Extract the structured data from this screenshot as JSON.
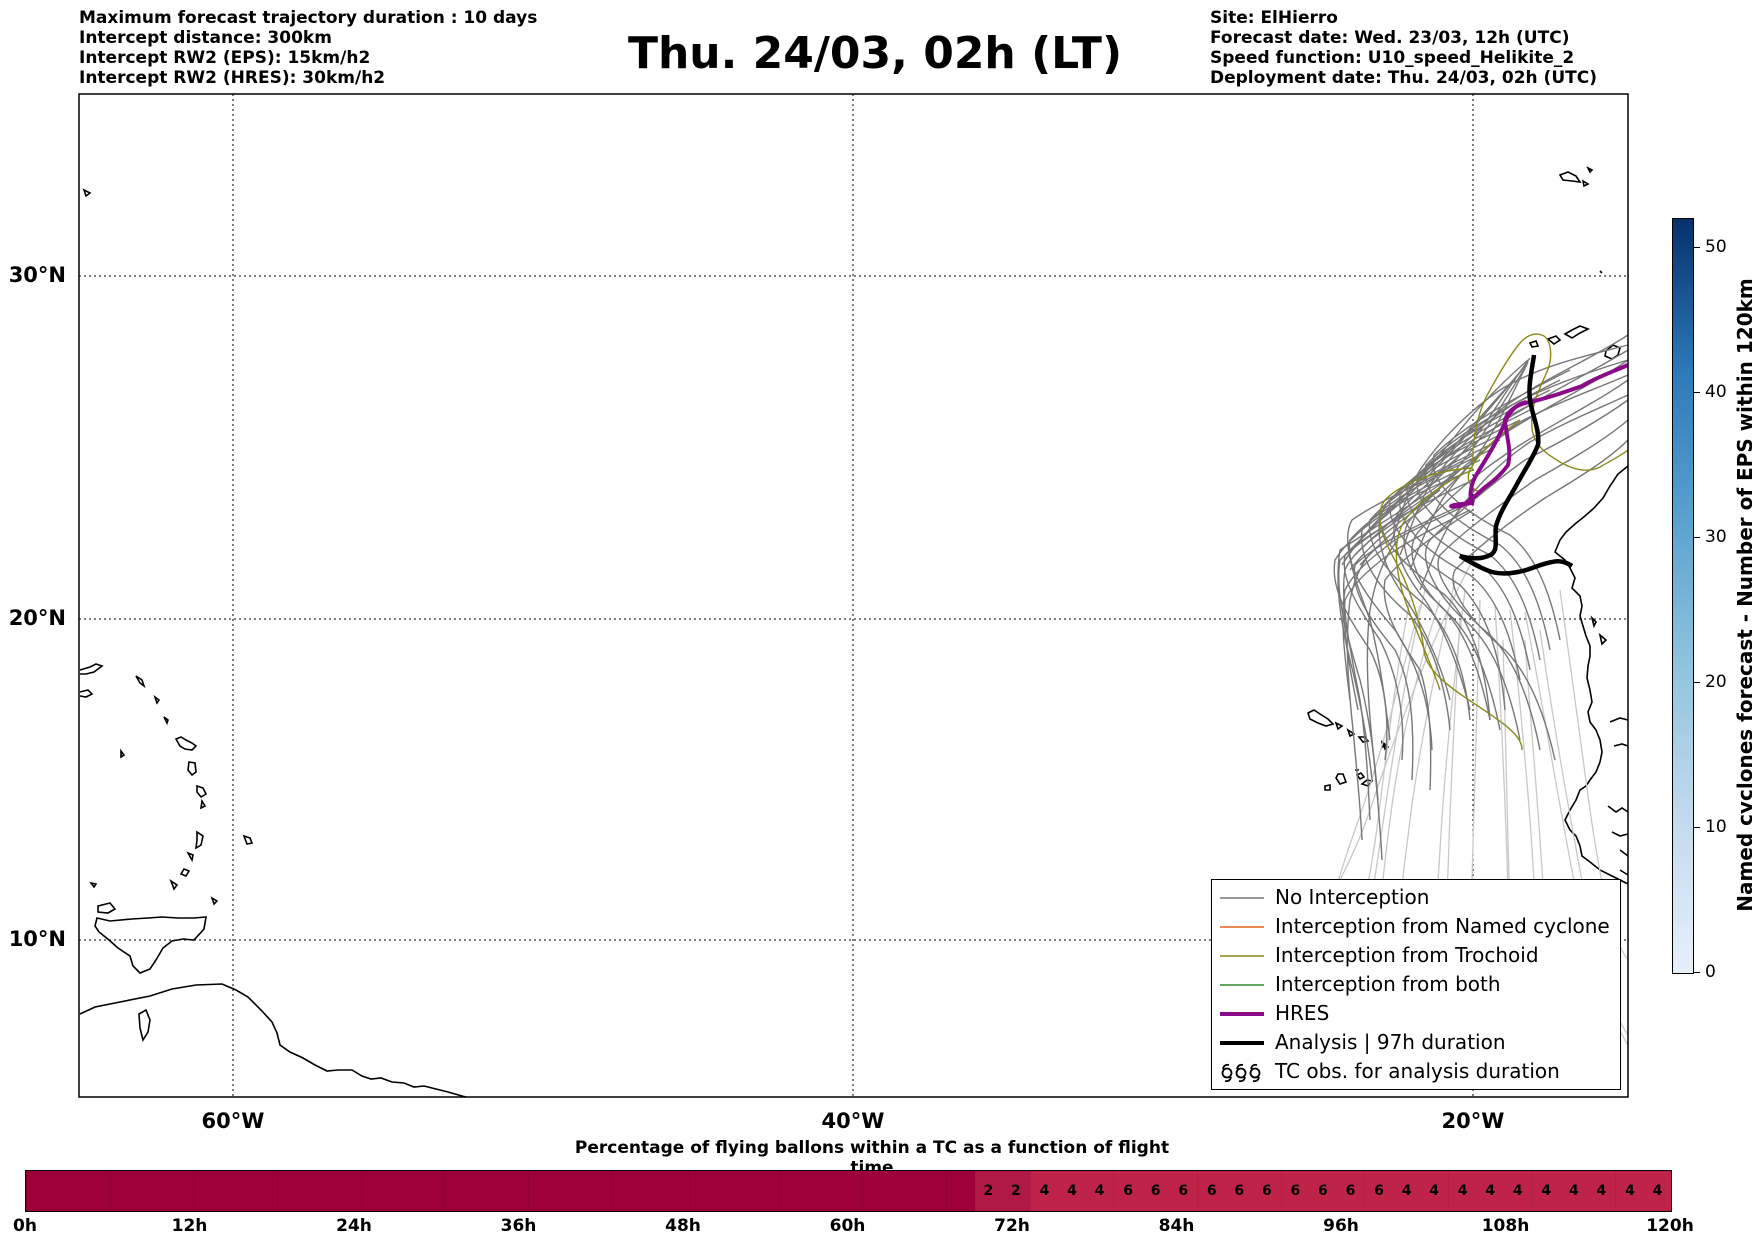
{
  "header_left": {
    "line1": "Maximum forecast trajectory duration : 10 days",
    "line2": "Intercept distance: 300km",
    "line3": "Intercept RW2 (EPS):  15km/h2",
    "line4": "Intercept RW2 (HRES): 30km/h2"
  },
  "title": "Thu. 24/03, 02h (LT)",
  "header_right": {
    "line1": "Site: ElHierro",
    "line2": "Forecast date: Wed. 23/03, 12h (UTC)",
    "line3": "Speed function: U10_speed_Helikite_2",
    "line4": "Deployment date: Thu. 24/03, 02h (UTC)"
  },
  "map": {
    "lat_labels": [
      "30°N",
      "20°N",
      "10°N"
    ],
    "lon_labels": [
      "60°W",
      "40°W",
      "20°W"
    ],
    "colors": {
      "no_interception": "#777777",
      "faint_trajectory": "#c8c8c8",
      "named_cyclone": "#e8601c",
      "trochoid": "#8a8a1a",
      "both": "#2e8b2e",
      "hres": "#8b0a8b",
      "analysis": "#000000"
    }
  },
  "legend": {
    "items": [
      {
        "label": "No Interception"
      },
      {
        "label": "Interception from Named cyclone"
      },
      {
        "label": "Interception from Trochoid"
      },
      {
        "label": "Interception from both"
      },
      {
        "label": "HRES"
      },
      {
        "label": "Analysis | 97h duration"
      },
      {
        "label": "TC obs. for analysis duration"
      }
    ]
  },
  "colorbar": {
    "title": "Named cyclones forecast - Number of EPS within 120km",
    "ticks": [
      "0",
      "10",
      "20",
      "30",
      "40",
      "50"
    ]
  },
  "time_bar": {
    "title": "Percentage of flying ballons within a TC as a function of flight time",
    "tick_labels": [
      "0h",
      "12h",
      "24h",
      "36h",
      "48h",
      "60h",
      "72h",
      "84h",
      "96h",
      "108h",
      "120h"
    ],
    "cells": [
      "",
      "",
      "",
      "",
      "",
      "",
      "",
      "",
      "",
      "",
      "",
      "",
      "",
      "",
      "",
      "",
      "",
      "",
      "",
      "",
      "",
      "",
      "",
      "",
      "",
      "",
      "",
      "",
      "",
      "",
      "",
      "",
      "",
      "",
      "2",
      "2",
      "4",
      "4",
      "4",
      "6",
      "6",
      "6",
      "6",
      "6",
      "6",
      "6",
      "6",
      "6",
      "6",
      "4",
      "4",
      "4",
      "4",
      "4",
      "4",
      "4",
      "4",
      "4",
      "4"
    ],
    "colors": {
      "zero": "#9e0039",
      "low": "#b01846",
      "mid": "#bf2349"
    }
  }
}
